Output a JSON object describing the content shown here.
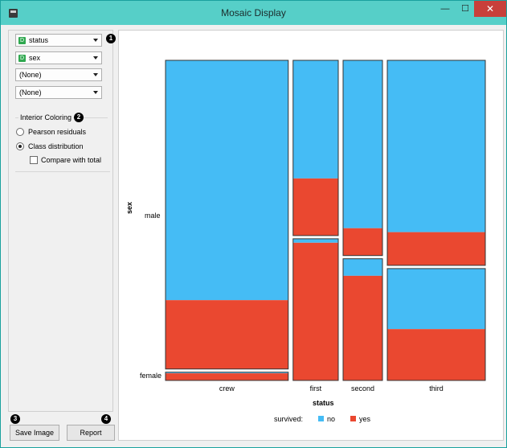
{
  "window": {
    "title": "Mosaic Display",
    "min_icon": "minimize-icon",
    "max_icon": "maximize-icon",
    "close_icon": "close-icon"
  },
  "controls": {
    "variables": [
      {
        "label": "status",
        "badge": "D"
      },
      {
        "label": "sex",
        "badge": "D"
      },
      {
        "label": "(None)",
        "badge": ""
      },
      {
        "label": "(None)",
        "badge": ""
      }
    ],
    "interior_coloring": {
      "title": "Interior Coloring",
      "options": [
        "Pearson residuals",
        "Class distribution"
      ],
      "selected": "Class distribution",
      "compare_label": "Compare with total",
      "compare_checked": false
    },
    "save_image_label": "Save Image",
    "report_label": "Report"
  },
  "markers": [
    "1",
    "2",
    "3",
    "4"
  ],
  "chart_data": {
    "type": "mosaic",
    "xlabel": "status",
    "ylabel": "sex",
    "categories": [
      "crew",
      "first",
      "second",
      "third"
    ],
    "column_shares": [
      0.402,
      0.148,
      0.129,
      0.321
    ],
    "rows": [
      "male",
      "female"
    ],
    "male_share_by_category": [
      0.974,
      0.553,
      0.616,
      0.647
    ],
    "class_variable": "survived",
    "classes": [
      {
        "name": "no",
        "color": "#45bcf5"
      },
      {
        "name": "yes",
        "color": "#ea4830"
      }
    ],
    "yes_fraction": {
      "male": [
        0.223,
        0.326,
        0.14,
        0.162
      ],
      "female": [
        0.87,
        0.972,
        0.86,
        0.459
      ]
    },
    "legend_title": "survived:",
    "legend_placement": "bottom"
  }
}
